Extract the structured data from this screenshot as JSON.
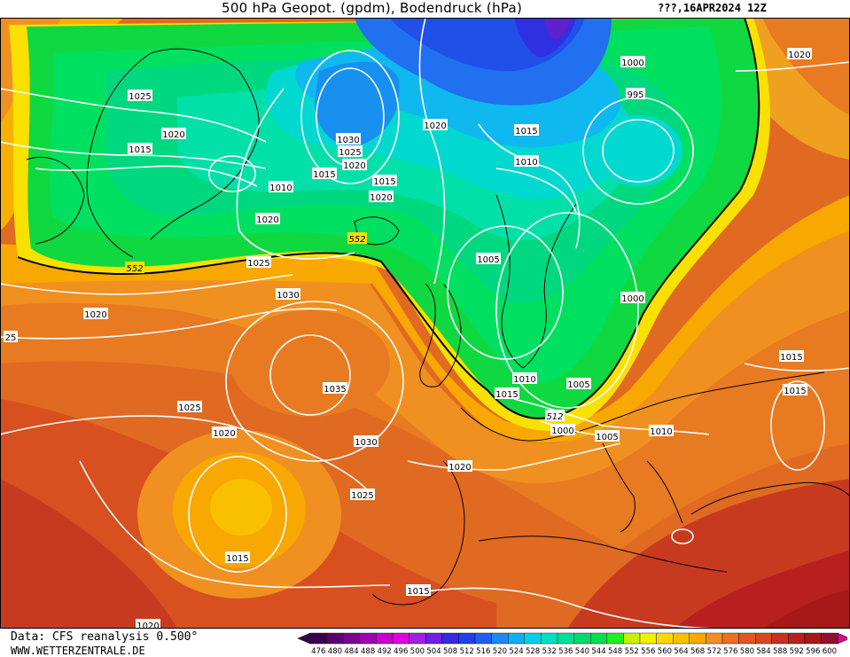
{
  "header": {
    "title": "500 hPa Geopot. (gpdm), Bodendruck (hPa)",
    "datetime": "???,16APR2024 12Z"
  },
  "footer": {
    "data_source": "Data: CFS reanalysis 0.500°",
    "website": "WWW.WETTERZENTRALE.DE"
  },
  "legend": {
    "values": [
      "476",
      "480",
      "484",
      "488",
      "492",
      "496",
      "500",
      "504",
      "508",
      "512",
      "516",
      "520",
      "524",
      "528",
      "532",
      "536",
      "540",
      "544",
      "548",
      "552",
      "556",
      "560",
      "564",
      "568",
      "572",
      "576",
      "580",
      "584",
      "588",
      "592",
      "596",
      "600"
    ],
    "colors": [
      "#3a0050",
      "#5a0070",
      "#7a0090",
      "#a000b0",
      "#c800d0",
      "#e000e0",
      "#a020e0",
      "#7020e0",
      "#3828e0",
      "#2040e8",
      "#2060f0",
      "#2088f0",
      "#10b0f0",
      "#00d0e8",
      "#00e0c0",
      "#00e098",
      "#00d870",
      "#00e050",
      "#20f020",
      "#c8f000",
      "#f0f000",
      "#f8d800",
      "#f8c000",
      "#f8a800",
      "#f09020",
      "#e87020",
      "#e05820",
      "#d84820",
      "#c83020",
      "#b82020",
      "#a81818",
      "#901030"
    ]
  },
  "geopotential_labels": [
    "552",
    "552",
    "512"
  ],
  "pressure_labels": [
    "1025",
    "1020",
    "1015",
    "1030",
    "1025",
    "1020",
    "1015",
    "1010",
    "1020",
    "1015",
    "1020",
    "1020",
    "1010",
    "995",
    "1000",
    "1020",
    "1015",
    "1005",
    "1000",
    "1025",
    "1020",
    "1030",
    "1035",
    "1030",
    "1025",
    "1020",
    "1025",
    "1015",
    "1015",
    "1010",
    "1005",
    "1000",
    "1005",
    "1010",
    "1015",
    "1015",
    "1020",
    "1015",
    "1020",
    "25"
  ]
}
